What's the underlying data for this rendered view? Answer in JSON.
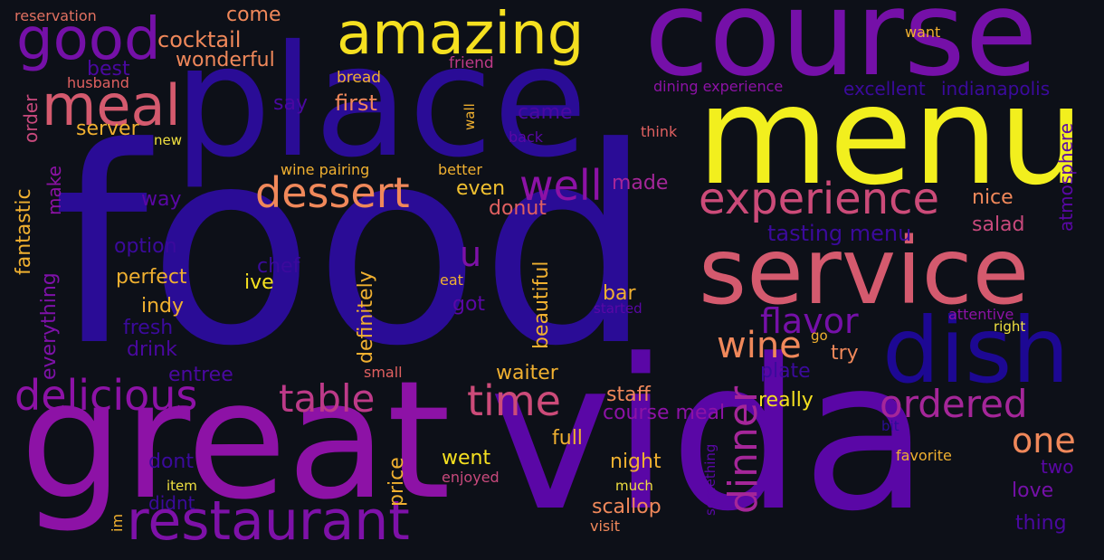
{
  "background": "#0d1018",
  "words": [
    {
      "text": "food",
      "color": "#2a0c96"
    },
    {
      "text": "place",
      "color": "#2a0c96"
    },
    {
      "text": "vida",
      "color": "#5a07a6"
    },
    {
      "text": "great",
      "color": "#8d12a6"
    },
    {
      "text": "course",
      "color": "#7510a8"
    },
    {
      "text": "menu",
      "color": "#f2ef1e"
    },
    {
      "text": "service",
      "color": "#d45a6e"
    },
    {
      "text": "dish",
      "color": "#1d0893"
    },
    {
      "text": "restaurant",
      "color": "#7e11a8"
    },
    {
      "text": "good",
      "color": "#7510a8"
    },
    {
      "text": "amazing",
      "color": "#f5e020"
    },
    {
      "text": "meal",
      "color": "#d45a6e"
    },
    {
      "text": "dessert",
      "color": "#f0885a"
    },
    {
      "text": "experience",
      "color": "#cc4b79"
    },
    {
      "text": "delicious",
      "color": "#8d12a6"
    },
    {
      "text": "time",
      "color": "#cc4b79"
    },
    {
      "text": "table",
      "color": "#bd3a88"
    },
    {
      "text": "dinner",
      "color": "#a52699"
    },
    {
      "text": "ordered",
      "color": "#a52699"
    },
    {
      "text": "well",
      "color": "#8d12a6"
    },
    {
      "text": "wine",
      "color": "#f0885a"
    },
    {
      "text": "flavor",
      "color": "#7510a8"
    },
    {
      "text": "one",
      "color": "#f0885a"
    },
    {
      "text": "u",
      "color": "#7e11a8"
    },
    {
      "text": "cocktail",
      "color": "#f0885a"
    },
    {
      "text": "wonderful",
      "color": "#f0885a"
    },
    {
      "text": "come",
      "color": "#f0885a"
    },
    {
      "text": "best",
      "color": "#4a08a0"
    },
    {
      "text": "order",
      "color": "#c8497c"
    },
    {
      "text": "say",
      "color": "#4a08a0"
    },
    {
      "text": "first",
      "color": "#f0885a"
    },
    {
      "text": "server",
      "color": "#f0b030"
    },
    {
      "text": "came",
      "color": "#4a08a0"
    },
    {
      "text": "husband",
      "color": "#e06060"
    },
    {
      "text": "reservation",
      "color": "#e07060"
    },
    {
      "text": "bread",
      "color": "#f0b030"
    },
    {
      "text": "friend",
      "color": "#bd3a88"
    },
    {
      "text": "want",
      "color": "#f0b030"
    },
    {
      "text": "dining experience",
      "color": "#8d12a6"
    },
    {
      "text": "excellent",
      "color": "#3b0a9c"
    },
    {
      "text": "indianapolis",
      "color": "#3b0a9c"
    },
    {
      "text": "new",
      "color": "#f0e040"
    },
    {
      "text": "back",
      "color": "#5a07a6"
    },
    {
      "text": "think",
      "color": "#e06060"
    },
    {
      "text": "wall",
      "color": "#f0b030"
    },
    {
      "text": "atmosphere",
      "color": "#5a07a6"
    },
    {
      "text": "fantastic",
      "color": "#f0b030"
    },
    {
      "text": "make",
      "color": "#8d12a6"
    },
    {
      "text": "wine pairing",
      "color": "#f0b030"
    },
    {
      "text": "better",
      "color": "#f0b030"
    },
    {
      "text": "made",
      "color": "#a52699"
    },
    {
      "text": "even",
      "color": "#f0c030"
    },
    {
      "text": "way",
      "color": "#5a07a6"
    },
    {
      "text": "donut",
      "color": "#e06060"
    },
    {
      "text": "nice",
      "color": "#f0885a"
    },
    {
      "text": "salad",
      "color": "#c8497c"
    },
    {
      "text": "tasting menu",
      "color": "#3b0a9c"
    },
    {
      "text": "option",
      "color": "#3b0a9c"
    },
    {
      "text": "everything",
      "color": "#7e11a8"
    },
    {
      "text": "chef",
      "color": "#3b0a9c"
    },
    {
      "text": "perfect",
      "color": "#f0b030"
    },
    {
      "text": "ive",
      "color": "#f5e020"
    },
    {
      "text": "definitely",
      "color": "#f0b030"
    },
    {
      "text": "beautiful",
      "color": "#f0b030"
    },
    {
      "text": "eat",
      "color": "#f0b030"
    },
    {
      "text": "got",
      "color": "#5a07a6"
    },
    {
      "text": "bar",
      "color": "#f0b030"
    },
    {
      "text": "started",
      "color": "#5a07a6"
    },
    {
      "text": "attentive",
      "color": "#8d12a6"
    },
    {
      "text": "right",
      "color": "#f0e040"
    },
    {
      "text": "indy",
      "color": "#f0b030"
    },
    {
      "text": "fresh",
      "color": "#3b0a9c"
    },
    {
      "text": "drink",
      "color": "#4a08a0"
    },
    {
      "text": "entree",
      "color": "#4a08a0"
    },
    {
      "text": "small",
      "color": "#e06060"
    },
    {
      "text": "waiter",
      "color": "#f0b030"
    },
    {
      "text": "try",
      "color": "#f0885a"
    },
    {
      "text": "go",
      "color": "#f0b030"
    },
    {
      "text": "plate",
      "color": "#3b0a9c"
    },
    {
      "text": "staff",
      "color": "#f0885a"
    },
    {
      "text": "really",
      "color": "#f5e020"
    },
    {
      "text": "course meal",
      "color": "#8d12a6"
    },
    {
      "text": "full",
      "color": "#f0b030"
    },
    {
      "text": "bit",
      "color": "#2a0c96"
    },
    {
      "text": "price",
      "color": "#f0b030"
    },
    {
      "text": "went",
      "color": "#f5e020"
    },
    {
      "text": "night",
      "color": "#f0b030"
    },
    {
      "text": "favorite",
      "color": "#f0b030"
    },
    {
      "text": "two",
      "color": "#5a07a6"
    },
    {
      "text": "dont",
      "color": "#3b0a9c"
    },
    {
      "text": "enjoyed",
      "color": "#c8497c"
    },
    {
      "text": "item",
      "color": "#f0e040"
    },
    {
      "text": "much",
      "color": "#f0e040"
    },
    {
      "text": "didnt",
      "color": "#3b0a9c"
    },
    {
      "text": "scallop",
      "color": "#f0885a"
    },
    {
      "text": "something",
      "color": "#5a07a6"
    },
    {
      "text": "love",
      "color": "#7510a8"
    },
    {
      "text": "im",
      "color": "#f0b030"
    },
    {
      "text": "visit",
      "color": "#f0885a"
    },
    {
      "text": "thing",
      "color": "#4a08a0"
    }
  ]
}
